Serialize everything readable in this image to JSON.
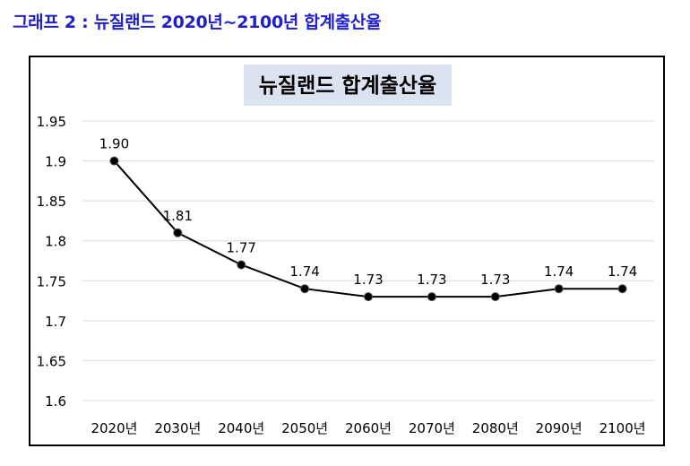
{
  "caption": "그래프 2 : 뉴질랜드 2020년~2100년 합계출산율",
  "colors": {
    "caption": "#1f1fcc",
    "title_bg": "#dbe3f1",
    "line": "#000000",
    "grid": "#d9d9d9"
  },
  "chart_data": {
    "type": "line",
    "title": "뉴질랜드 합계출산율",
    "xlabel": "",
    "ylabel": "",
    "categories": [
      "2020년",
      "2030년",
      "2040년",
      "2050년",
      "2060년",
      "2070년",
      "2080년",
      "2090년",
      "2100년"
    ],
    "series": [
      {
        "name": "합계출산율",
        "values": [
          1.9,
          1.81,
          1.77,
          1.74,
          1.73,
          1.73,
          1.73,
          1.74,
          1.74
        ]
      }
    ],
    "data_labels": [
      "1.90",
      "1.81",
      "1.77",
      "1.74",
      "1.73",
      "1.73",
      "1.73",
      "1.74",
      "1.74"
    ],
    "y_ticks": [
      "1.6",
      "1.65",
      "1.7",
      "1.75",
      "1.8",
      "1.85",
      "1.9",
      "1.95"
    ],
    "ylim": [
      1.6,
      1.95
    ],
    "grid": true,
    "legend": "none"
  }
}
